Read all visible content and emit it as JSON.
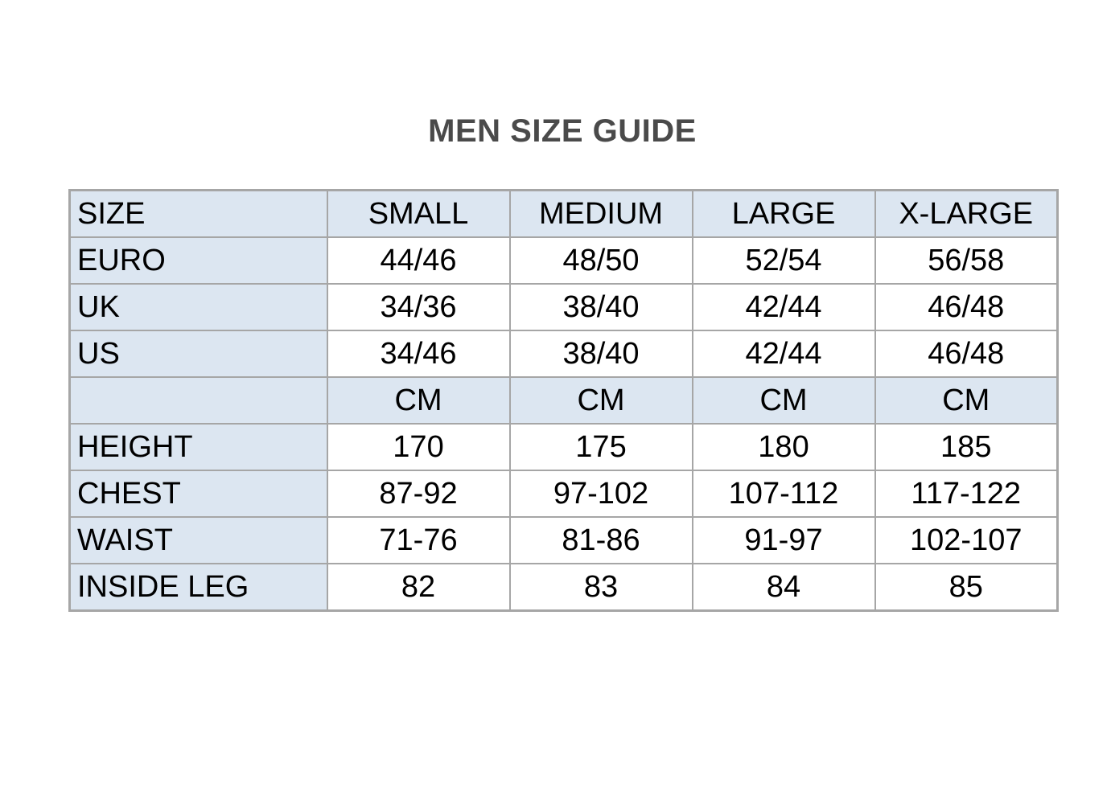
{
  "title": "MEN SIZE GUIDE",
  "colors": {
    "page_bg": "#ffffff",
    "shaded_cell_bg": "#dce6f1",
    "data_cell_bg": "#ffffff",
    "border": "#a6a6a6",
    "title_text": "#4a4a4a",
    "cell_text": "#000000"
  },
  "size_table": {
    "columns": [
      "SIZE",
      "SMALL",
      "MEDIUM",
      "LARGE",
      "X-LARGE"
    ],
    "rows": [
      {
        "label": "EURO",
        "values": [
          "44/46",
          "48/50",
          "52/54",
          "56/58"
        ]
      },
      {
        "label": "UK",
        "values": [
          "34/36",
          "38/40",
          "42/44",
          "46/48"
        ]
      },
      {
        "label": "US",
        "values": [
          "34/46",
          "38/40",
          "42/44",
          "46/48"
        ]
      },
      {
        "label": "",
        "values": [
          "CM",
          "CM",
          "CM",
          "CM"
        ]
      },
      {
        "label": "HEIGHT",
        "values": [
          "170",
          "175",
          "180",
          "185"
        ]
      },
      {
        "label": "CHEST",
        "values": [
          "87-92",
          "97-102",
          "107-112",
          "117-122"
        ]
      },
      {
        "label": "WAIST",
        "values": [
          "71-76",
          "81-86",
          "91-97",
          "102-107"
        ]
      },
      {
        "label": "INSIDE LEG",
        "values": [
          "82",
          "83",
          "84",
          "85"
        ]
      }
    ]
  }
}
